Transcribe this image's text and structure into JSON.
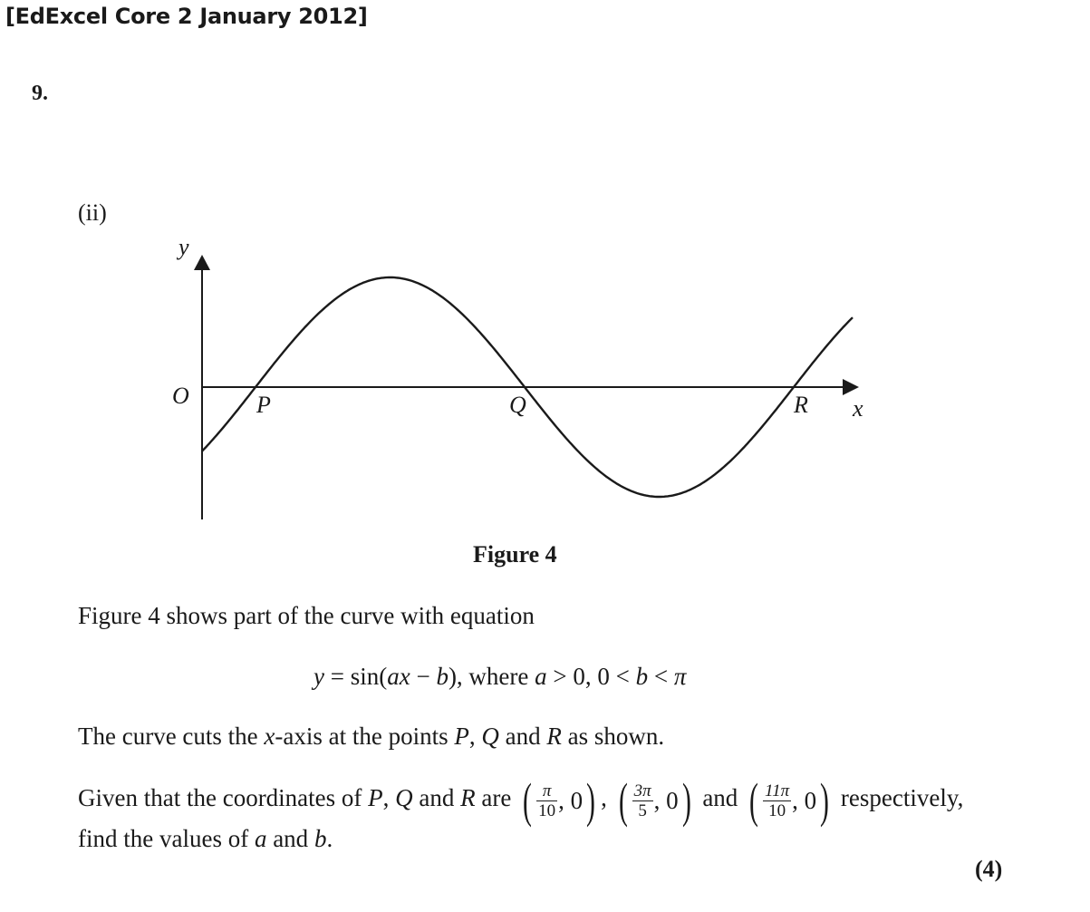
{
  "header": {
    "title": "[EdExcel Core 2 January 2012]"
  },
  "question": {
    "number": "9.",
    "part": "(ii)"
  },
  "figure": {
    "caption": "Figure 4",
    "labels": {
      "y_axis": "y",
      "x_axis": "x",
      "origin": "O",
      "P": "P",
      "Q": "Q",
      "R": "R"
    }
  },
  "text": {
    "line1": "Figure 4 shows part of the curve with equation",
    "eq_y": "y",
    "eq_main": " = sin(",
    "eq_ax": "ax",
    "eq_minus": " − ",
    "eq_b": "b",
    "eq_close": "),  where ",
    "eq_a2": "a",
    "eq_cond1": " > 0,  0 < ",
    "eq_b2": "b",
    "eq_cond2": " < ",
    "eq_pi": "π",
    "line2_a": "The curve cuts the ",
    "line2_x": "x",
    "line2_b": "-axis at the points ",
    "line2_P": "P",
    "line2_c": ", ",
    "line2_Q": "Q",
    "line2_d": " and ",
    "line2_R": "R",
    "line2_e": " as shown.",
    "line3_a": "Given that the coordinates of  ",
    "line3_P": "P",
    "line3_b": ", ",
    "line3_Q": "Q",
    "line3_c": " and ",
    "line3_R": "R",
    "line3_d": " are",
    "coord_P_num": "π",
    "coord_P_den": "10",
    "coord_Q_num": "3π",
    "coord_Q_den": "5",
    "coord_R_num": "11π",
    "coord_R_den": "10",
    "coord_zero": ", 0",
    "sep1": ", ",
    "sep2": " and ",
    "line3_e": " respectively,",
    "line4_a": "find the values of ",
    "line4_a_var": "a",
    "line4_b": " and ",
    "line4_b_var": "b",
    "line4_c": ".",
    "marks": "(4)"
  }
}
